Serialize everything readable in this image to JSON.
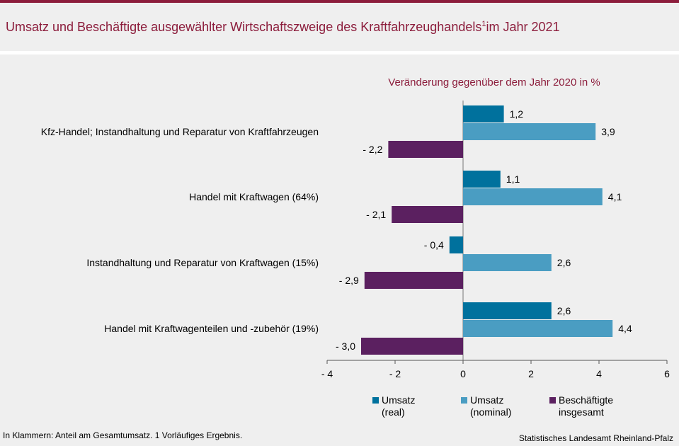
{
  "title_main": "Umsatz und Beschäftigte ausgewählter Wirtschaftszweige des Kraftfahrzeughandels",
  "title_sup": "1",
  "title_tail": "im Jahr 2021",
  "footnote": "In Klammern: Anteil am Gesamtumsatz. 1 Vorläufiges  Ergebnis.",
  "source": "Statistisches Landesamt Rheinland-Pfalz",
  "colors": {
    "real": "#00719d",
    "nominal": "#4a9dc2",
    "employees": "#5b2060",
    "accent": "#8c1d3c"
  },
  "chart_data": {
    "type": "bar",
    "orientation": "horizontal",
    "subtitle": "Veränderung  gegenüber dem Jahr 2020 in %",
    "categories": [
      "Kfz-Handel; Instandhaltung und Reparatur von Kraftfahrzeugen",
      "Handel mit Kraftwagen (64%)",
      "Instandhaltung und Reparatur von Kraftwagen (15%)",
      "Handel mit Kraftwagenteilen und -zubehör (19%)"
    ],
    "series": [
      {
        "name": "Umsatz (real)",
        "values": [
          1.2,
          1.1,
          -0.4,
          2.6
        ],
        "labels": [
          "1,2",
          "1,1",
          "- 0,4",
          "2,6"
        ]
      },
      {
        "name": "Umsatz (nominal)",
        "values": [
          3.9,
          4.1,
          2.6,
          4.4
        ],
        "labels": [
          "3,9",
          "4,1",
          "2,6",
          "4,4"
        ]
      },
      {
        "name": "Beschäftigte insgesamt",
        "values": [
          -2.2,
          -2.1,
          -2.9,
          -3.0
        ],
        "labels": [
          "- 2,2",
          "- 2,1",
          "- 2,9",
          "- 3,0"
        ]
      }
    ],
    "xlim": [
      -4,
      6
    ],
    "xticks": [
      -4,
      -2,
      0,
      2,
      4,
      6
    ],
    "xtick_labels": [
      "- 4",
      "- 2",
      "0",
      "2",
      "4",
      "6"
    ],
    "legend": [
      {
        "line1": "Umsatz",
        "line2": "(real)"
      },
      {
        "line1": "Umsatz",
        "line2": "(nominal)"
      },
      {
        "line1": "Beschäftigte",
        "line2": "insgesamt"
      }
    ]
  }
}
